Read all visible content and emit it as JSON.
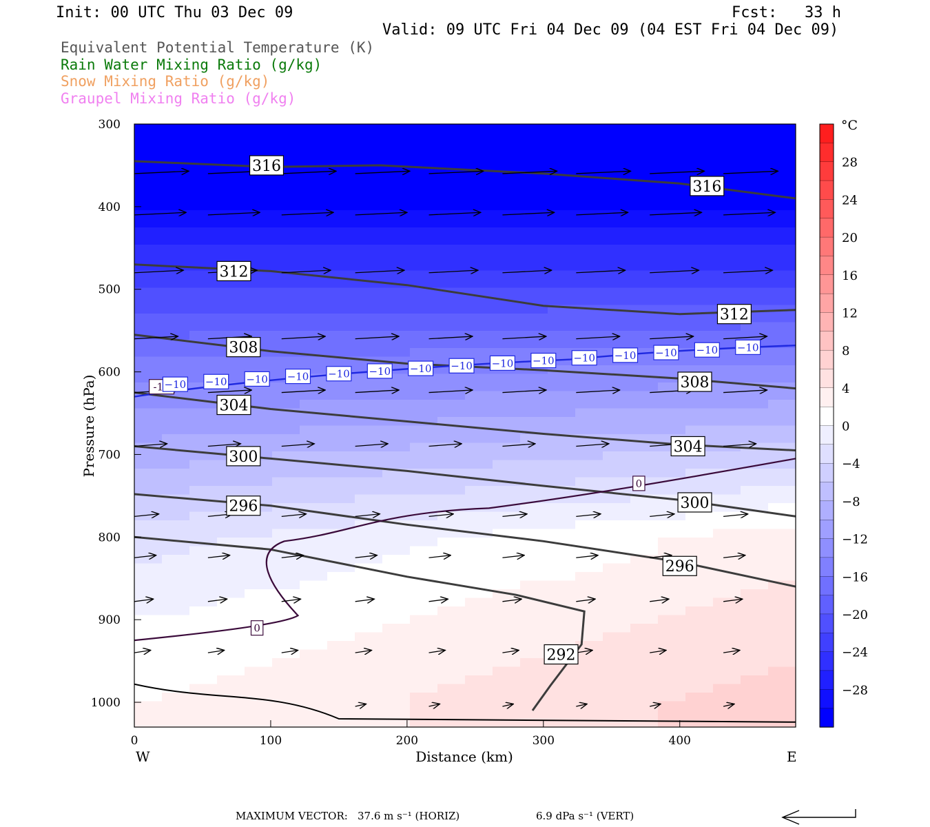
{
  "header": {
    "init": "Init: 00 UTC Thu 03 Dec 09",
    "fcst": "Fcst:   33 h",
    "valid": "Valid: 09 UTC Fri 04 Dec 09 (04 EST Fri 04 Dec 09)"
  },
  "legend": [
    {
      "label": "Equivalent Potential Temperature (K)",
      "color": "#555555"
    },
    {
      "label": "Rain Water Mixing Ratio (g/kg)",
      "color": "#0a7a0a"
    },
    {
      "label": "Snow Mixing Ratio (g/kg)",
      "color": "#f0a060"
    },
    {
      "label": "Graupel Mixing Ratio (g/kg)",
      "color": "#f080f0"
    }
  ],
  "footer": {
    "max_vector_label": "MAXIMUM VECTOR:",
    "horiz": "37.6 m s⁻¹ (HORIZ)",
    "vert": "6.9 dPa s⁻¹ (VERT)"
  },
  "chart_data": {
    "type": "heatmap",
    "xlabel": "Distance (km)",
    "ylabel": "Pressure (hPa)",
    "xlim": [
      0,
      485
    ],
    "ylim": [
      1030,
      300
    ],
    "x_ticks": [
      0,
      100,
      200,
      300,
      400
    ],
    "y_ticks": [
      300,
      400,
      500,
      600,
      700,
      800,
      900,
      1000
    ],
    "x_left_label": "W",
    "x_right_label": "E",
    "colorbar": {
      "unit": "°C",
      "ticks": [
        28,
        24,
        20,
        16,
        12,
        8,
        4,
        0,
        -4,
        -8,
        -12,
        -16,
        -20,
        -24,
        -28
      ],
      "range": [
        -32,
        32
      ]
    },
    "temperature_field": {
      "pressure_levels": [
        300,
        400,
        500,
        600,
        700,
        800,
        900,
        1000
      ],
      "west_c": [
        -34,
        -30,
        -22,
        -15,
        -9,
        -3,
        0,
        2
      ],
      "east_c": [
        -34,
        -30,
        -22,
        -13,
        -5,
        3,
        5,
        7
      ]
    },
    "theta_e_contours": [
      {
        "value": "316",
        "points": [
          [
            0,
            345
          ],
          [
            100,
            352
          ],
          [
            180,
            350
          ],
          [
            300,
            360
          ],
          [
            400,
            372
          ],
          [
            485,
            390
          ]
        ]
      },
      {
        "value": "312",
        "points": [
          [
            0,
            470
          ],
          [
            100,
            478
          ],
          [
            200,
            495
          ],
          [
            300,
            520
          ],
          [
            400,
            530
          ],
          [
            485,
            525
          ]
        ]
      },
      {
        "value": "308",
        "points": [
          [
            0,
            555
          ],
          [
            100,
            575
          ],
          [
            200,
            590
          ],
          [
            300,
            598
          ],
          [
            400,
            608
          ],
          [
            485,
            620
          ]
        ]
      },
      {
        "value": "304",
        "points": [
          [
            0,
            625
          ],
          [
            100,
            645
          ],
          [
            200,
            660
          ],
          [
            300,
            675
          ],
          [
            400,
            688
          ],
          [
            485,
            695
          ]
        ]
      },
      {
        "value": "300",
        "points": [
          [
            0,
            690
          ],
          [
            100,
            705
          ],
          [
            200,
            720
          ],
          [
            300,
            738
          ],
          [
            400,
            755
          ],
          [
            485,
            775
          ]
        ]
      },
      {
        "value": "296",
        "points": [
          [
            0,
            748
          ],
          [
            100,
            762
          ],
          [
            200,
            785
          ],
          [
            300,
            805
          ],
          [
            400,
            830
          ],
          [
            485,
            860
          ]
        ]
      },
      {
        "value": "292",
        "points": [
          [
            0,
            800
          ],
          [
            100,
            815
          ],
          [
            200,
            848
          ],
          [
            280,
            870
          ],
          [
            330,
            890
          ],
          [
            328,
            930
          ],
          [
            305,
            980
          ],
          [
            292,
            1010
          ]
        ]
      }
    ],
    "isotherm_labels": [
      {
        "value": "0",
        "at": [
          90,
          910
        ]
      },
      {
        "value": "0",
        "at": [
          370,
          735
        ]
      },
      {
        "value": "-10",
        "at": [
          20,
          618
        ]
      }
    ],
    "theta_e_labels": [
      {
        "value": "316",
        "at": [
          97,
          350
        ]
      },
      {
        "value": "316",
        "at": [
          420,
          375
        ]
      },
      {
        "value": "312",
        "at": [
          73,
          478
        ]
      },
      {
        "value": "312",
        "at": [
          440,
          530
        ]
      },
      {
        "value": "308",
        "at": [
          80,
          570
        ]
      },
      {
        "value": "308",
        "at": [
          411,
          612
        ]
      },
      {
        "value": "304",
        "at": [
          73,
          640
        ]
      },
      {
        "value": "304",
        "at": [
          406,
          690
        ]
      },
      {
        "value": "300",
        "at": [
          80,
          702
        ]
      },
      {
        "value": "300",
        "at": [
          411,
          758
        ]
      },
      {
        "value": "296",
        "at": [
          80,
          762
        ]
      },
      {
        "value": "296",
        "at": [
          400,
          835
        ]
      },
      {
        "value": "292",
        "at": [
          313,
          942
        ]
      }
    ],
    "minus10_labels": [
      "−10",
      "−10",
      "−10",
      "−10",
      "−10",
      "−10",
      "−10",
      "−10",
      "−10",
      "−10",
      "−10",
      "−10",
      "−10",
      "−10",
      "−10"
    ],
    "wind_vectors": {
      "pressure_levels": [
        360,
        410,
        480,
        560,
        625,
        690,
        775,
        825,
        878,
        940,
        1005
      ],
      "length_km": [
        40,
        38,
        36,
        32,
        32,
        24,
        18,
        16,
        14,
        12,
        8
      ]
    }
  }
}
